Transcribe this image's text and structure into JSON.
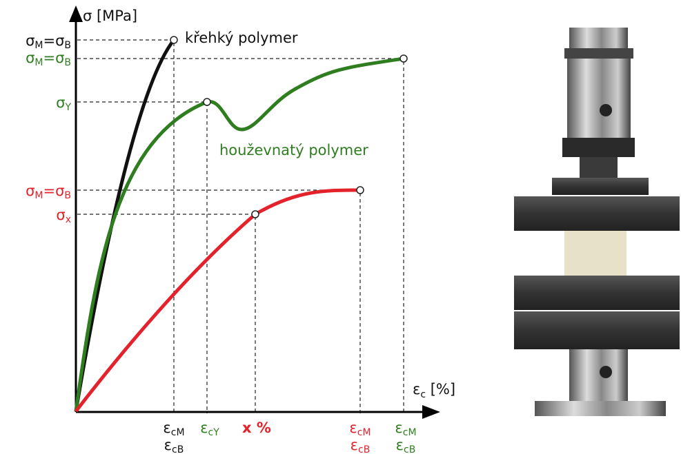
{
  "y_axis_title": "σ [MPa]",
  "x_axis_title": [
    "ε",
    "c",
    " [%]"
  ],
  "y_labels": [
    [
      "σ",
      "M",
      "=σ",
      "B"
    ],
    [
      "σ",
      "M",
      "=σ",
      "B"
    ],
    [
      "σ",
      "Y"
    ],
    [
      "σ",
      "M",
      "=σ",
      "B"
    ],
    [
      "σ",
      "x"
    ]
  ],
  "curve_labels": [
    "křehký polymer",
    "houževnatý polymer"
  ],
  "x_labels": [
    [
      [
        "ε",
        "cM"
      ],
      [
        "ε",
        "cB"
      ]
    ],
    [
      [
        "ε",
        "cY"
      ]
    ],
    [
      [
        "x %"
      ]
    ],
    [
      [
        "ε",
        "cM"
      ],
      [
        "ε",
        "cB"
      ]
    ],
    [
      [
        "ε",
        "cM"
      ],
      [
        "ε",
        "cB"
      ]
    ]
  ]
}
